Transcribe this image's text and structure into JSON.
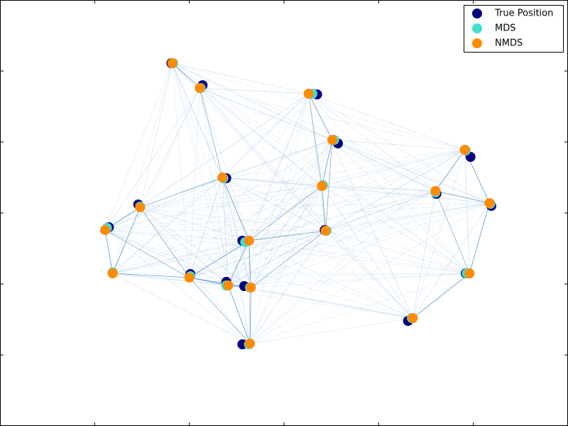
{
  "chart_data": {
    "type": "scatter",
    "xlim": [
      0,
      6
    ],
    "ylim": [
      0,
      6
    ],
    "xticks": [
      1,
      2,
      3,
      4,
      5
    ],
    "yticks": [
      1,
      2,
      3,
      4,
      5
    ],
    "legend": "upper right",
    "series": [
      {
        "name": "True Position",
        "color": "#000080",
        "x": [
          1.81,
          2.14,
          3.35,
          3.57,
          4.97,
          2.39,
          3.41,
          4.61,
          1.46,
          5.19,
          1.15,
          3.43,
          2.56,
          1.19,
          2.01,
          2.39,
          2.58,
          4.92,
          4.31,
          2.56
        ],
        "values": [
          5.11,
          4.8,
          4.67,
          3.98,
          3.79,
          3.49,
          3.39,
          3.27,
          3.12,
          3.1,
          2.8,
          2.76,
          2.61,
          2.16,
          2.14,
          2.03,
          1.97,
          2.15,
          1.48,
          1.15
        ]
      },
      {
        "name": "MDS",
        "color": "#40e0d0",
        "x": [
          1.83,
          2.12,
          3.3,
          3.53,
          4.92,
          2.36,
          3.41,
          4.6,
          1.48,
          5.18,
          1.13,
          3.45,
          2.59,
          1.19,
          2.01,
          2.39,
          2.64,
          4.93,
          4.35,
          2.63
        ],
        "values": [
          5.11,
          4.76,
          4.68,
          4.03,
          3.88,
          3.49,
          3.39,
          3.29,
          3.09,
          3.13,
          2.79,
          2.75,
          2.59,
          2.16,
          2.11,
          1.98,
          1.95,
          2.15,
          1.52,
          1.15
        ]
      },
      {
        "name": "NMDS",
        "color": "#ff8c00",
        "x": [
          1.82,
          2.11,
          3.26,
          3.51,
          4.91,
          2.35,
          3.4,
          4.6,
          1.48,
          5.17,
          1.11,
          3.44,
          2.63,
          1.19,
          2.0,
          2.41,
          2.65,
          4.96,
          4.36,
          2.64
        ],
        "values": [
          5.11,
          4.76,
          4.68,
          4.03,
          3.89,
          3.5,
          3.38,
          3.31,
          3.08,
          3.14,
          2.76,
          2.75,
          2.61,
          2.15,
          2.09,
          1.98,
          1.95,
          2.15,
          1.52,
          1.16
        ]
      }
    ]
  }
}
